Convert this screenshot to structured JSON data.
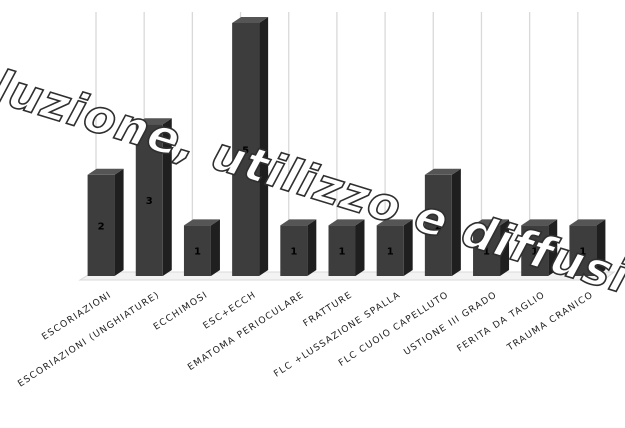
{
  "chart_data": {
    "type": "bar",
    "style": "3d-column",
    "categories": [
      "ESCORIAZIONI",
      "ESCORIAZIONI (UNGHIATURE)",
      "ECCHIMOSI",
      "ESC+ECCH",
      "EMATOMA PERIOCULARE",
      "FRATTURE",
      "FLC +LUSSAZIONE SPALLA",
      "FLC CUOIO CAPELLUTO",
      "USTIONE III GRADO",
      "FERITA DA TAGLIO",
      "TRAUMA CRANICO"
    ],
    "values": [
      2,
      3,
      1,
      5,
      1,
      1,
      1,
      2,
      1,
      1,
      1
    ],
    "data_labels": [
      "2",
      "3",
      "1",
      "5",
      "1",
      "1",
      "1",
      "2",
      "1",
      "1",
      "1"
    ],
    "ylim": [
      0,
      5
    ],
    "grid": "vertical",
    "legend": "none",
    "colors": {
      "bar_front": "#3d3d3d",
      "bar_side": "#1f1f1f",
      "bar_top": "#555555",
      "grid": "#d9d9d9"
    }
  },
  "watermark": {
    "text": "luzione, utilizzo e diffusione anch"
  }
}
